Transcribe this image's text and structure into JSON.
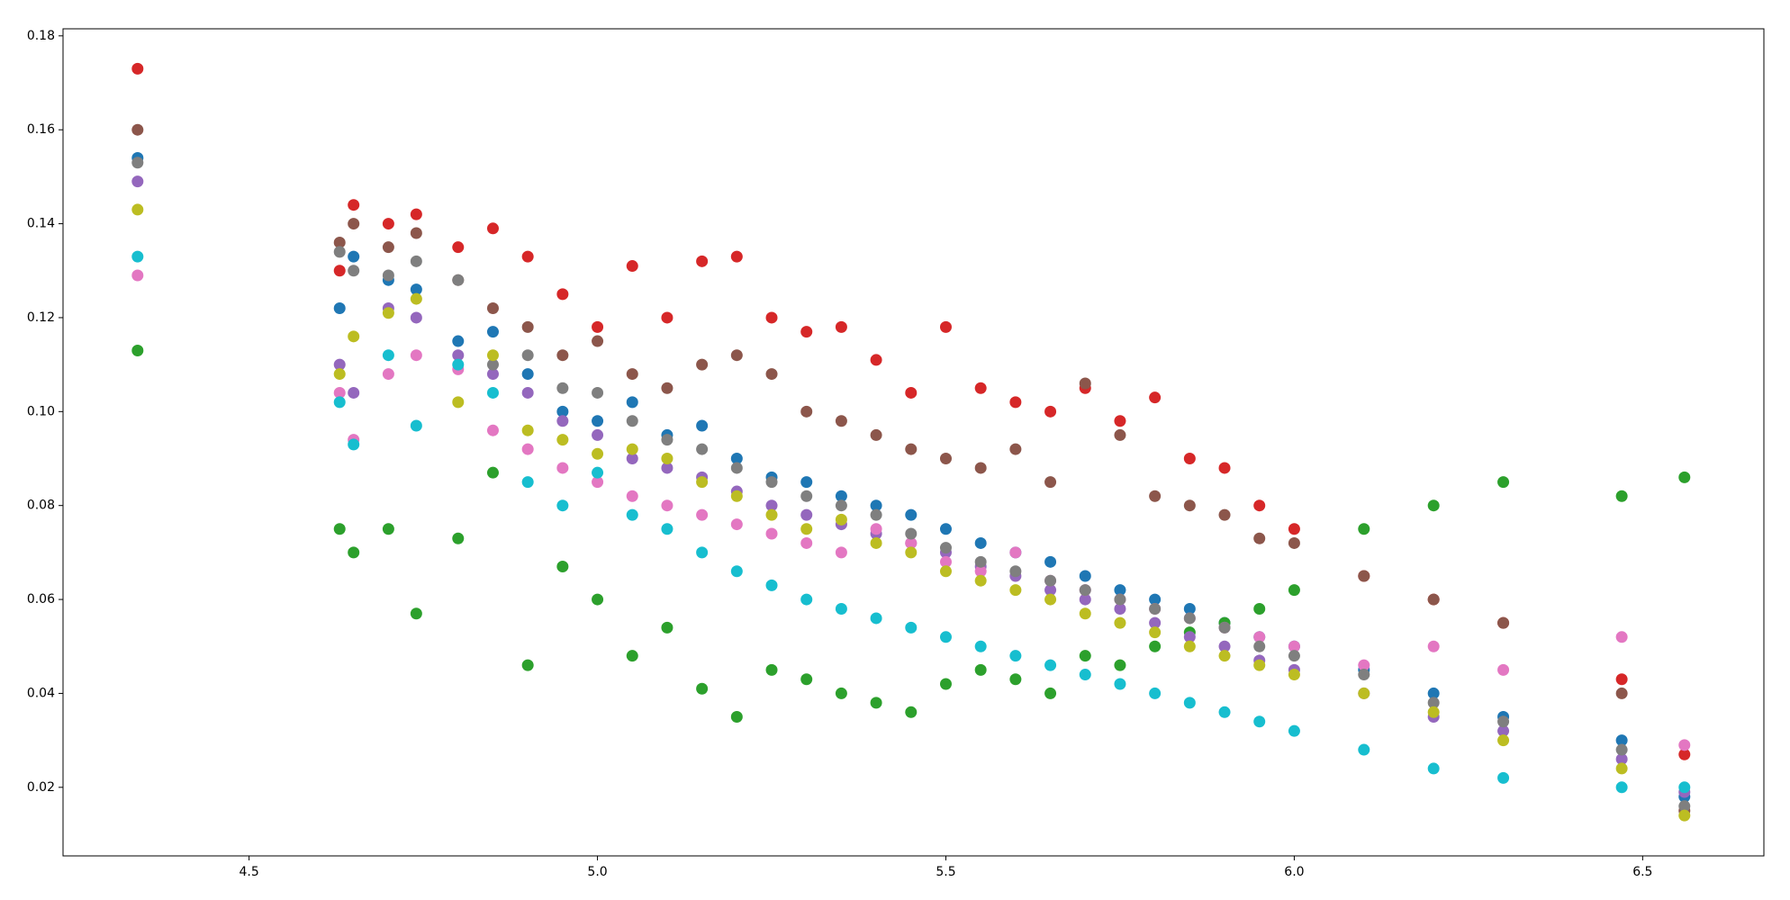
{
  "chart_data": {
    "type": "scatter",
    "x": [
      4.34,
      4.63,
      4.65,
      4.7,
      4.74,
      4.8,
      4.85,
      4.9,
      4.95,
      5.0,
      5.05,
      5.1,
      5.15,
      5.2,
      5.25,
      5.3,
      5.35,
      5.4,
      5.45,
      5.5,
      5.55,
      5.6,
      5.65,
      5.7,
      5.75,
      5.8,
      5.85,
      5.9,
      5.95,
      6.0,
      6.1,
      6.2,
      6.3,
      6.47,
      6.56
    ],
    "series": [
      {
        "color": "#1f77b4",
        "values": [
          0.154,
          0.122,
          0.133,
          0.128,
          0.126,
          0.115,
          0.117,
          0.108,
          0.1,
          0.098,
          0.102,
          0.095,
          0.097,
          0.09,
          0.086,
          0.085,
          0.082,
          0.08,
          0.078,
          0.075,
          0.072,
          0.07,
          0.068,
          0.065,
          0.062,
          0.06,
          0.058,
          0.055,
          0.052,
          0.05,
          0.045,
          0.04,
          0.035,
          0.03,
          0.018
        ]
      },
      {
        "color": "#2ca02c",
        "values": [
          0.113,
          0.075,
          0.07,
          0.075,
          0.057,
          0.073,
          0.087,
          0.046,
          0.067,
          0.06,
          0.048,
          0.054,
          0.041,
          0.035,
          0.045,
          0.043,
          0.04,
          0.038,
          0.036,
          0.042,
          0.045,
          0.043,
          0.04,
          0.048,
          0.046,
          0.05,
          0.053,
          0.055,
          0.058,
          0.062,
          0.075,
          0.08,
          0.085,
          0.082,
          0.086
        ]
      },
      {
        "color": "#d62728",
        "values": [
          0.173,
          0.13,
          0.144,
          0.14,
          0.142,
          0.135,
          0.139,
          0.133,
          0.125,
          0.118,
          0.131,
          0.12,
          0.132,
          0.133,
          0.12,
          0.117,
          0.118,
          0.111,
          0.104,
          0.118,
          0.105,
          0.102,
          0.1,
          0.105,
          0.098,
          0.103,
          0.09,
          0.088,
          0.08,
          0.075,
          0.065,
          0.06,
          0.055,
          0.043,
          0.027
        ]
      },
      {
        "color": "#9467bd",
        "values": [
          0.149,
          0.11,
          0.104,
          0.122,
          0.12,
          0.112,
          0.108,
          0.104,
          0.098,
          0.095,
          0.09,
          0.088,
          0.086,
          0.083,
          0.08,
          0.078,
          0.076,
          0.074,
          0.072,
          0.07,
          0.067,
          0.065,
          0.062,
          0.06,
          0.058,
          0.055,
          0.052,
          0.05,
          0.047,
          0.045,
          0.04,
          0.035,
          0.032,
          0.026,
          0.019
        ]
      },
      {
        "color": "#8c564b",
        "values": [
          0.16,
          0.136,
          0.14,
          0.135,
          0.138,
          0.128,
          0.122,
          0.118,
          0.112,
          0.115,
          0.108,
          0.105,
          0.11,
          0.112,
          0.108,
          0.1,
          0.098,
          0.095,
          0.092,
          0.09,
          0.088,
          0.092,
          0.085,
          0.106,
          0.095,
          0.082,
          0.08,
          0.078,
          0.073,
          0.072,
          0.065,
          0.06,
          0.055,
          0.04,
          0.015
        ]
      },
      {
        "color": "#e377c2",
        "values": [
          0.129,
          0.104,
          0.094,
          0.108,
          0.112,
          0.109,
          0.096,
          0.092,
          0.088,
          0.085,
          0.082,
          0.08,
          0.078,
          0.076,
          0.074,
          0.072,
          0.07,
          0.075,
          0.072,
          0.068,
          0.066,
          0.07,
          0.064,
          0.062,
          0.06,
          0.058,
          0.056,
          0.054,
          0.052,
          0.05,
          0.046,
          0.05,
          0.045,
          0.052,
          0.029
        ]
      },
      {
        "color": "#7f7f7f",
        "values": [
          0.153,
          0.134,
          0.13,
          0.129,
          0.132,
          0.128,
          0.11,
          0.112,
          0.105,
          0.104,
          0.098,
          0.094,
          0.092,
          0.088,
          0.085,
          0.082,
          0.08,
          0.078,
          0.074,
          0.071,
          0.068,
          0.066,
          0.064,
          0.062,
          0.06,
          0.058,
          0.056,
          0.054,
          0.05,
          0.048,
          0.044,
          0.038,
          0.034,
          0.028,
          0.016
        ]
      },
      {
        "color": "#bcbd22",
        "values": [
          0.143,
          0.108,
          0.116,
          0.121,
          0.124,
          0.102,
          0.112,
          0.096,
          0.094,
          0.091,
          0.092,
          0.09,
          0.085,
          0.082,
          0.078,
          0.075,
          0.077,
          0.072,
          0.07,
          0.066,
          0.064,
          0.062,
          0.06,
          0.057,
          0.055,
          0.053,
          0.05,
          0.048,
          0.046,
          0.044,
          0.04,
          0.036,
          0.03,
          0.024,
          0.014
        ]
      },
      {
        "color": "#17becf",
        "values": [
          0.133,
          0.102,
          0.093,
          0.112,
          0.097,
          0.11,
          0.104,
          0.085,
          0.08,
          0.087,
          0.078,
          0.075,
          0.07,
          0.066,
          0.063,
          0.06,
          0.058,
          0.056,
          0.054,
          0.052,
          0.05,
          0.048,
          0.046,
          0.044,
          0.042,
          0.04,
          0.038,
          0.036,
          0.034,
          0.032,
          0.028,
          0.024,
          0.022,
          0.02,
          0.02
        ]
      }
    ],
    "xlim": [
      4.233,
      6.674
    ],
    "xticks": [
      4.5,
      {
        "value": 5,
        "label": "5.0"
      },
      5.5,
      {
        "value": 6,
        "label": "6.0"
      },
      6.5
    ],
    "ylim": [
      0.0054,
      0.1815
    ],
    "yticks": [
      0.02,
      0.04,
      0.06,
      0.08,
      {
        "value": 0.1,
        "label": "0.10"
      },
      0.12,
      0.14,
      0.16,
      0.18
    ]
  }
}
